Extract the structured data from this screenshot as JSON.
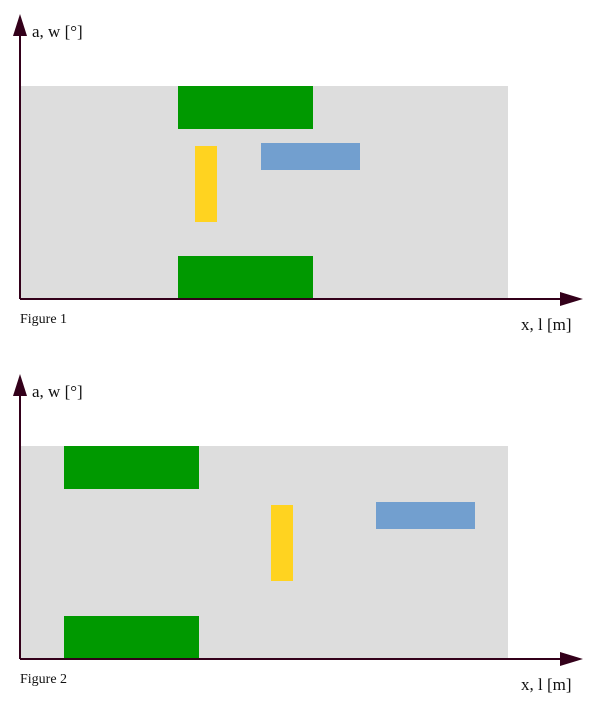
{
  "figures": [
    {
      "caption": "Figure 1",
      "y_axis_label": "a, w [°]",
      "x_axis_label": "x, l [m]"
    },
    {
      "caption": "Figure 2",
      "y_axis_label": "a, w [°]",
      "x_axis_label": "x, l [m]"
    }
  ],
  "colors": {
    "axis": "#33001a",
    "field": "#dddddd",
    "green": "#009900",
    "yellow": "#ffd320",
    "blue": "#729fcf"
  }
}
